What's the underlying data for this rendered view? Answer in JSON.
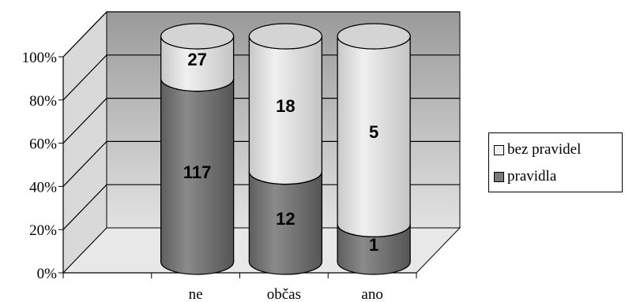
{
  "chart_data": {
    "type": "bar",
    "stacked": "percent",
    "style": "3d-cylinder",
    "categories": [
      "ne",
      "občas",
      "ano"
    ],
    "series": [
      {
        "name": "pravidla",
        "values": [
          117,
          12,
          1
        ],
        "color": "#7a7a7a"
      },
      {
        "name": "bez pravidel",
        "values": [
          27,
          18,
          5
        ],
        "color": "#e6e6e6"
      }
    ],
    "ylim": [
      0,
      100
    ],
    "yticks": [
      "0%",
      "20%",
      "40%",
      "60%",
      "80%",
      "100%"
    ],
    "grid": true,
    "legend_position": "right",
    "colors": {
      "wall": "#bdbdbd",
      "floor": "#e8e8e8"
    }
  }
}
